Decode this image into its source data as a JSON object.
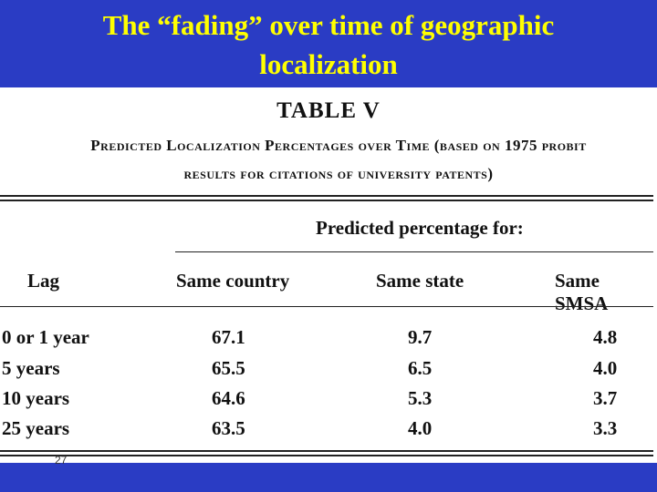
{
  "slide": {
    "title_line1": "The “fading” over time of geographic",
    "title_line2": "localization",
    "page_number": "27"
  },
  "table": {
    "caption": "TABLE V",
    "subtitle_line1": "Predicted Localization Percentages over Time (based on 1975 probit",
    "subtitle_line2": "results for citations of university patents)",
    "spanner": "Predicted percentage for:",
    "stub_header": "Lag",
    "columns": [
      "Same country",
      "Same state",
      "Same SMSA"
    ],
    "rows": [
      {
        "lag": "0 or 1 year",
        "values": [
          "67.1",
          "9.7",
          "4.8"
        ]
      },
      {
        "lag": "5 years",
        "values": [
          "65.5",
          "6.5",
          "4.0"
        ]
      },
      {
        "lag": "10 years",
        "values": [
          "64.6",
          "5.3",
          "3.7"
        ]
      },
      {
        "lag": "25 years",
        "values": [
          "63.5",
          "4.0",
          "3.3"
        ]
      }
    ]
  },
  "colors": {
    "background": "#2a3cc4",
    "title": "#ffff00",
    "panel": "#ffffff"
  }
}
